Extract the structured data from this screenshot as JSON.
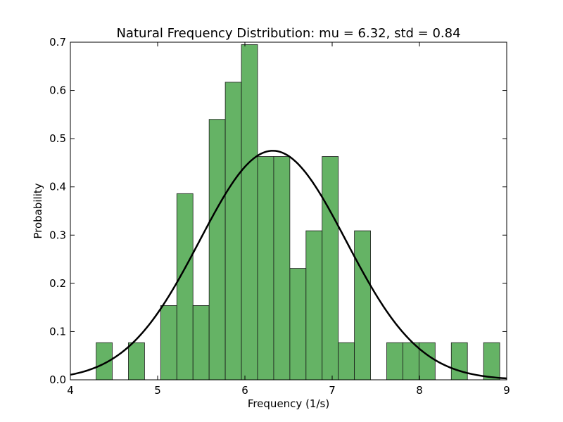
{
  "chart_data": {
    "type": "bar",
    "title": "Natural Frequency Distribution: mu = 6.32,  std = 0.84",
    "xlabel": "Frequency (1/s)",
    "ylabel": "Probability",
    "xlim": [
      4,
      9
    ],
    "ylim": [
      0,
      0.7
    ],
    "xticks": [
      "4",
      "5",
      "6",
      "7",
      "8",
      "9"
    ],
    "yticks": [
      "0.0",
      "0.1",
      "0.2",
      "0.3",
      "0.4",
      "0.5",
      "0.6",
      "0.7"
    ],
    "bin_width": 0.185,
    "bars": [
      {
        "x0": 4.295,
        "value": 0.077
      },
      {
        "x0": 4.665,
        "value": 0.077
      },
      {
        "x0": 5.035,
        "value": 0.154
      },
      {
        "x0": 5.22,
        "value": 0.386
      },
      {
        "x0": 5.405,
        "value": 0.154
      },
      {
        "x0": 5.59,
        "value": 0.54
      },
      {
        "x0": 5.775,
        "value": 0.617
      },
      {
        "x0": 5.96,
        "value": 0.695
      },
      {
        "x0": 6.145,
        "value": 0.463
      },
      {
        "x0": 6.33,
        "value": 0.463
      },
      {
        "x0": 6.515,
        "value": 0.231
      },
      {
        "x0": 6.7,
        "value": 0.309
      },
      {
        "x0": 6.885,
        "value": 0.463
      },
      {
        "x0": 7.07,
        "value": 0.077
      },
      {
        "x0": 7.255,
        "value": 0.309
      },
      {
        "x0": 7.625,
        "value": 0.077
      },
      {
        "x0": 7.81,
        "value": 0.077
      },
      {
        "x0": 7.995,
        "value": 0.077
      },
      {
        "x0": 8.365,
        "value": 0.077
      },
      {
        "x0": 8.735,
        "value": 0.077
      }
    ],
    "fit": {
      "mu": 6.32,
      "std": 0.84
    },
    "colors": {
      "bar": "#4aa64a",
      "curve": "#000000"
    },
    "grid": false
  }
}
